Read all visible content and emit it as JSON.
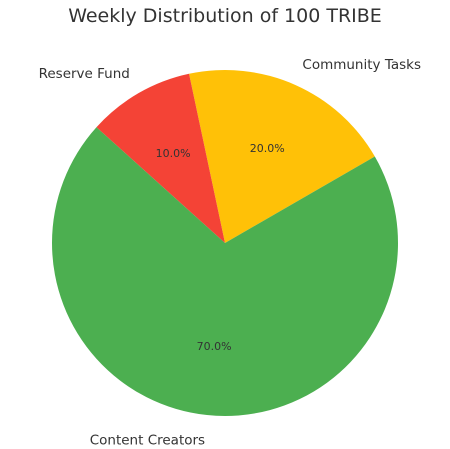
{
  "chart_data": {
    "type": "pie",
    "title": "Weekly Distribution of 100 TRIBE",
    "slices": [
      {
        "label": "Community Tasks",
        "value": 20,
        "percent_label": "20.0%",
        "color": "#FFC107"
      },
      {
        "label": "Reserve Fund",
        "value": 10,
        "percent_label": "10.0%",
        "color": "#F44336"
      },
      {
        "label": "Content Creators",
        "value": 70,
        "percent_label": "70.0%",
        "color": "#4CAF50"
      }
    ],
    "start_angle_deg": 30,
    "direction": "counterclockwise",
    "legend": "none"
  }
}
